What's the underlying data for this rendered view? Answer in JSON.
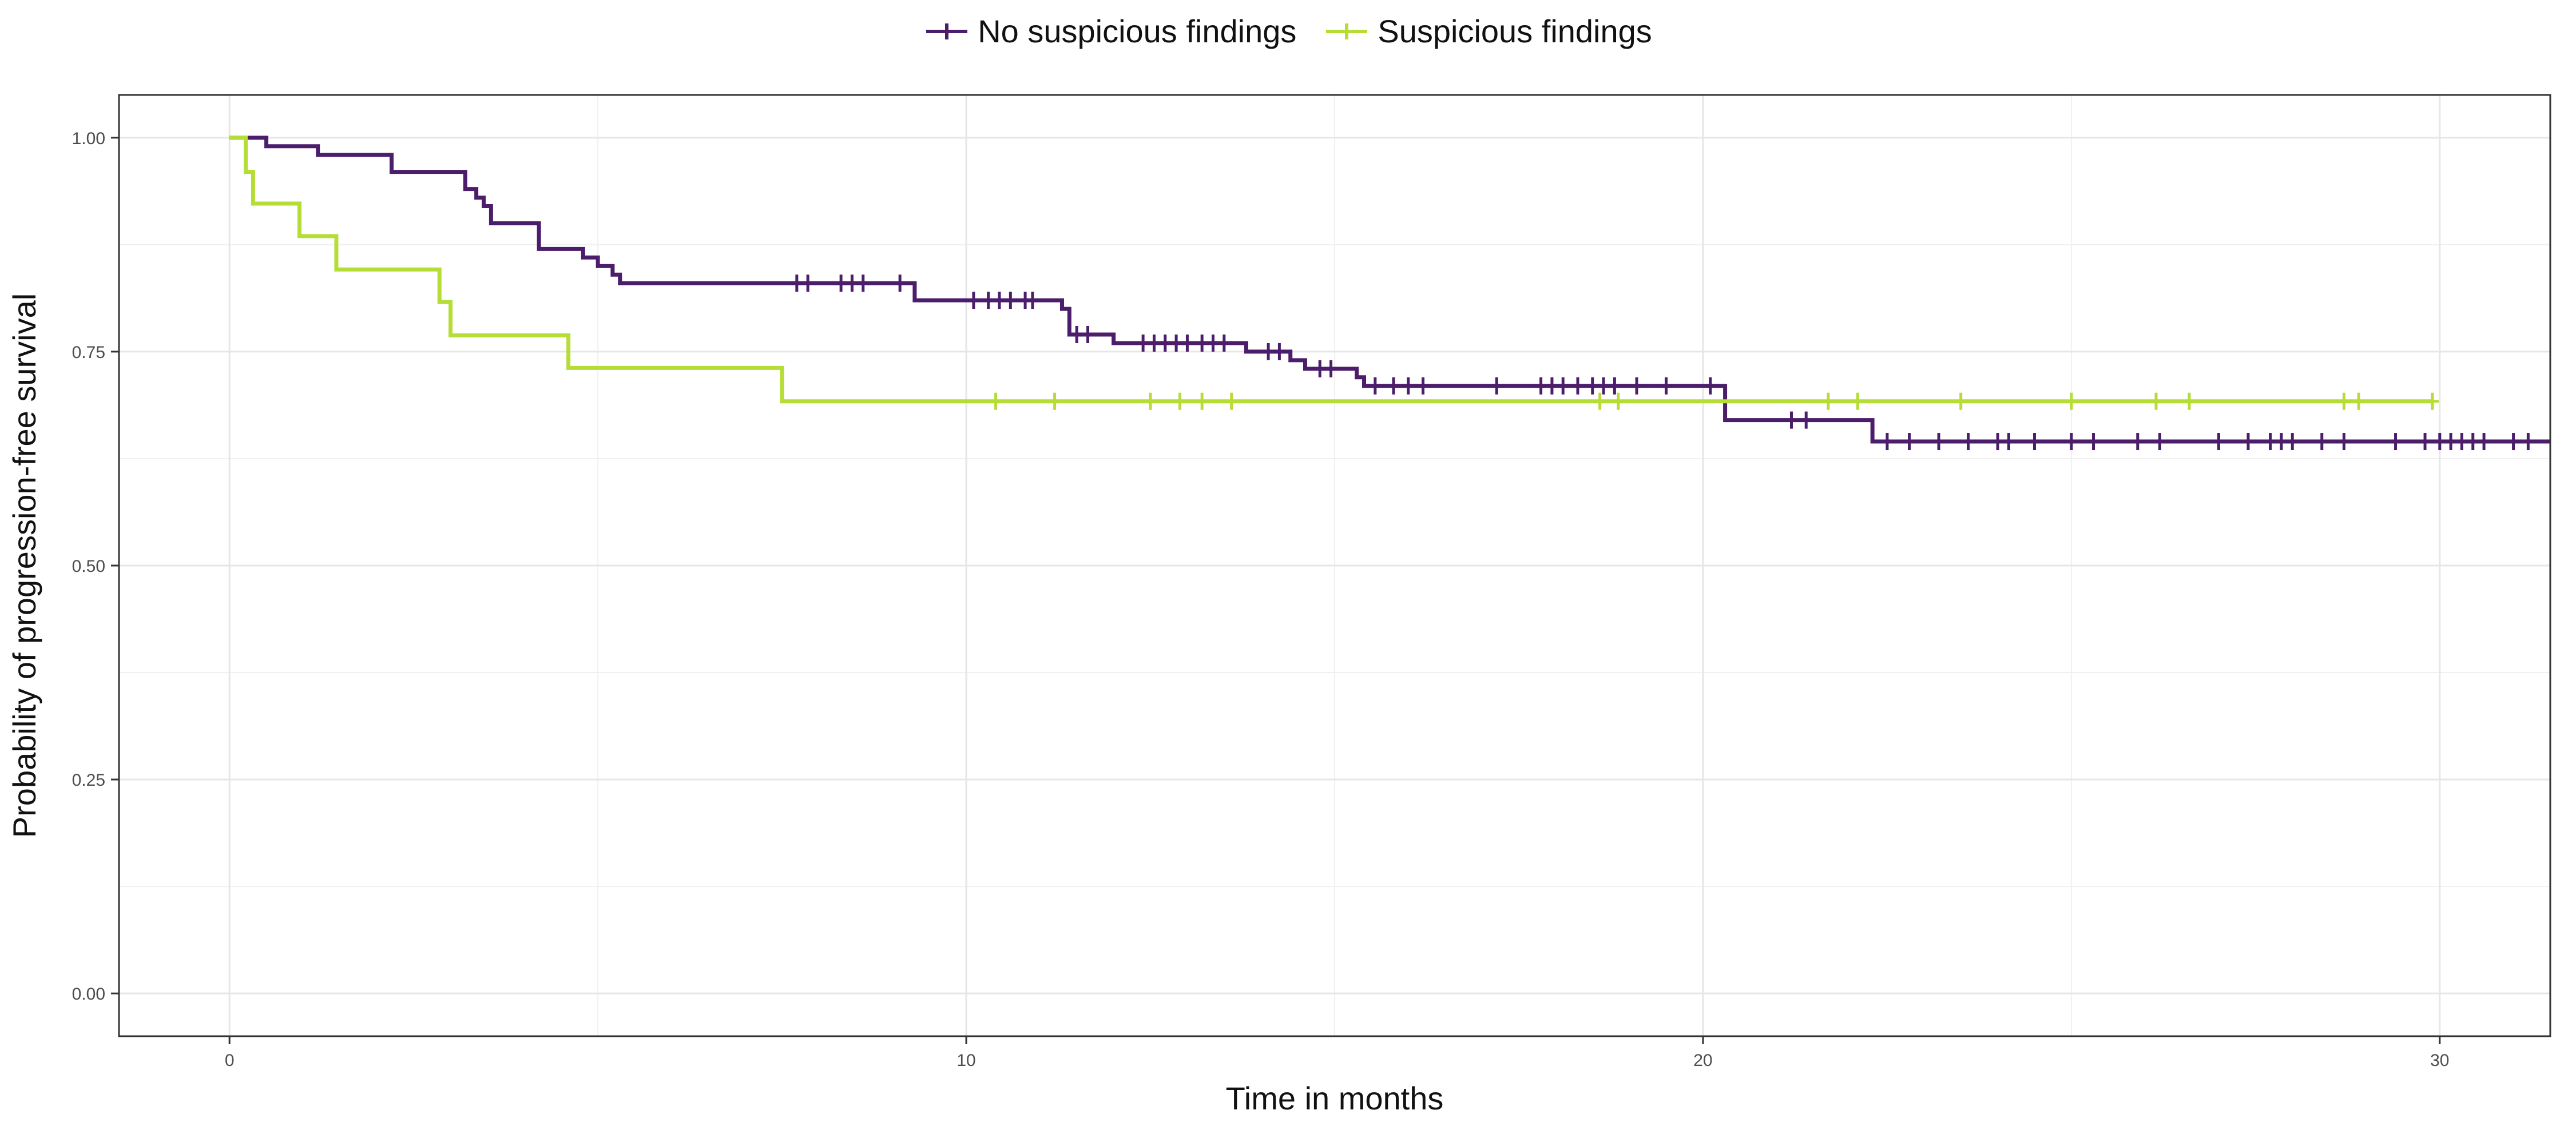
{
  "chart_data": {
    "type": "line",
    "title": "",
    "xlabel": "Time in months",
    "ylabel": "Probability of progression-free survival",
    "xlim": [
      -1.5,
      31.5
    ],
    "ylim": [
      -0.05,
      1.05
    ],
    "x_ticks": [
      0,
      10,
      20,
      30
    ],
    "x_tick_labels": [
      "0",
      "10",
      "20",
      "30"
    ],
    "y_ticks": [
      0,
      0.25,
      0.5,
      0.75,
      1.0
    ],
    "y_tick_labels": [
      "0.00",
      "0.25",
      "0.50",
      "0.75",
      "1.00"
    ],
    "grid": true,
    "legend_position": "top",
    "series": [
      {
        "name": "No suspicious findings",
        "color": "#4b1d6b",
        "steps": [
          [
            0,
            1.0
          ],
          [
            0.5,
            0.99
          ],
          [
            1.2,
            0.98
          ],
          [
            2.2,
            0.96
          ],
          [
            3.2,
            0.94
          ],
          [
            3.35,
            0.93
          ],
          [
            3.45,
            0.92
          ],
          [
            3.55,
            0.9
          ],
          [
            4.2,
            0.87
          ],
          [
            4.8,
            0.86
          ],
          [
            5.0,
            0.85
          ],
          [
            5.2,
            0.84
          ],
          [
            5.3,
            0.83
          ],
          [
            9.3,
            0.81
          ],
          [
            10.5,
            0.81
          ],
          [
            11.3,
            0.8
          ],
          [
            11.4,
            0.77
          ],
          [
            12.0,
            0.76
          ],
          [
            13.8,
            0.75
          ],
          [
            14.4,
            0.74
          ],
          [
            14.6,
            0.73
          ],
          [
            15.3,
            0.72
          ],
          [
            15.4,
            0.71
          ],
          [
            20.3,
            0.67
          ],
          [
            22.3,
            0.645
          ],
          [
            31.5,
            0.645
          ]
        ],
        "censor": [
          7.7,
          7.85,
          8.3,
          8.45,
          8.6,
          9.1,
          10.1,
          10.3,
          10.45,
          10.6,
          10.8,
          10.9,
          11.5,
          11.65,
          12.4,
          12.55,
          12.7,
          12.85,
          13.0,
          13.2,
          13.35,
          13.5,
          14.1,
          14.25,
          14.8,
          14.95,
          15.55,
          15.8,
          16.0,
          16.2,
          17.2,
          17.8,
          17.95,
          18.1,
          18.3,
          18.5,
          18.65,
          18.8,
          19.1,
          19.5,
          20.1,
          21.2,
          21.4,
          22.5,
          22.8,
          23.2,
          23.6,
          24.0,
          24.15,
          24.5,
          25.0,
          25.3,
          25.9,
          26.2,
          27.0,
          27.4,
          27.7,
          27.85,
          28.0,
          28.4,
          28.7,
          29.4,
          29.8,
          30.0,
          30.15,
          30.3,
          30.45,
          30.6,
          31.0,
          31.2
        ]
      },
      {
        "name": "Suspicious findings",
        "color": "#b5dd35",
        "steps": [
          [
            0,
            1.0
          ],
          [
            0.22,
            0.96
          ],
          [
            0.32,
            0.923
          ],
          [
            0.95,
            0.885
          ],
          [
            1.45,
            0.846
          ],
          [
            2.85,
            0.808
          ],
          [
            3.0,
            0.769
          ],
          [
            4.6,
            0.731
          ],
          [
            7.5,
            0.692
          ],
          [
            29.9,
            0.692
          ]
        ],
        "censor": [
          10.4,
          11.2,
          12.5,
          12.9,
          13.2,
          13.6,
          18.6,
          18.85,
          21.7,
          22.1,
          23.5,
          25.0,
          26.15,
          26.6,
          28.7,
          28.9,
          29.9
        ]
      }
    ]
  }
}
